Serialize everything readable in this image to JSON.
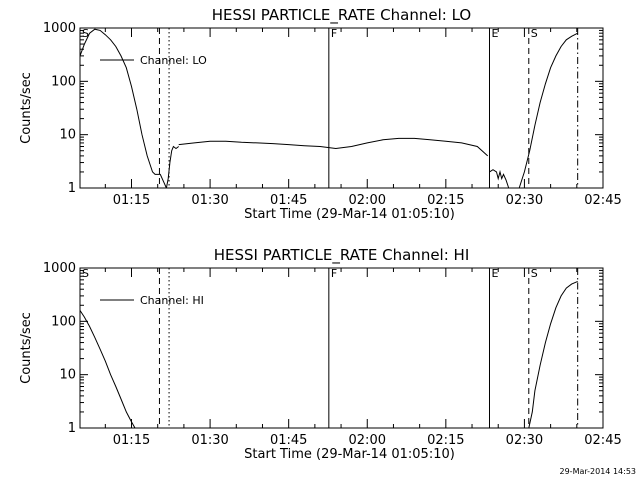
{
  "footer_timestamp": "29-Mar-2014 14:53",
  "chart_data": [
    {
      "type": "line",
      "title": "HESSI PARTICLE_RATE Channel: LO",
      "xlabel": "Start Time (29-Mar-14 01:05:10)",
      "ylabel": "Counts/sec",
      "y_scale": "log",
      "ylim": [
        1,
        1000
      ],
      "xlim": [
        "01:05:10",
        "02:45:00"
      ],
      "y_ticks": [
        "1",
        "10",
        "100",
        "1000"
      ],
      "x_ticks": [
        "01:15",
        "01:30",
        "01:45",
        "02:00",
        "02:15",
        "02:30",
        "02:45"
      ],
      "legend": {
        "entries": [
          "Channel: LO"
        ],
        "placement": "top-left"
      },
      "markers": [
        {
          "label": "S",
          "time": "01:05:10",
          "style": "solid"
        },
        {
          "label": "",
          "time": "01:20:20",
          "style": "dashed"
        },
        {
          "label": "",
          "time": "01:22:10",
          "style": "dotted"
        },
        {
          "label": "F",
          "time": "01:52:40",
          "style": "solid"
        },
        {
          "label": "E",
          "time": "02:23:20",
          "style": "solid"
        },
        {
          "label": "S",
          "time": "02:30:50",
          "style": "dashed"
        },
        {
          "label": "",
          "time": "02:40:10",
          "style": "dashdot"
        }
      ],
      "series": [
        {
          "name": "Channel: LO",
          "segments": [
            {
              "x": [
                "01:05:10",
                "01:06:00",
                "01:07:00",
                "01:08:00",
                "01:09:00",
                "01:10:00",
                "01:11:00",
                "01:12:00",
                "01:13:00",
                "01:14:00",
                "01:15:00",
                "01:16:00",
                "01:17:00",
                "01:18:00",
                "01:19:00",
                "01:19:30",
                "01:20:00",
                "01:20:30",
                "01:21:00",
                "01:21:40"
              ],
              "y": [
                300,
                500,
                800,
                950,
                900,
                750,
                600,
                450,
                300,
                180,
                80,
                30,
                10,
                4,
                2,
                1.8,
                1.8,
                1.8,
                1.4,
                1.0
              ]
            },
            {
              "x": [
                "01:21:40",
                "01:22:00",
                "01:22:20",
                "01:22:40",
                "01:23:00",
                "01:23:30",
                "01:24:00"
              ],
              "y": [
                1.0,
                1.5,
                3,
                5,
                6,
                5.5,
                6
              ]
            },
            {
              "x": [
                "01:24:00",
                "01:27:00",
                "01:30:00",
                "01:33:00",
                "01:36:00",
                "01:39:00",
                "01:42:00",
                "01:45:00",
                "01:48:00",
                "01:51:00",
                "01:54:00",
                "01:57:00",
                "02:00:00",
                "02:03:00",
                "02:06:00",
                "02:09:00",
                "02:12:00",
                "02:15:00",
                "02:18:00",
                "02:21:00",
                "02:23:00"
              ],
              "y": [
                6.5,
                7,
                7.5,
                7.5,
                7.2,
                7,
                6.8,
                6.5,
                6.2,
                6,
                5.5,
                6,
                7,
                8,
                8.5,
                8.5,
                8,
                7.5,
                7,
                6,
                4
              ]
            },
            {
              "x": [
                "02:23:20",
                "02:24:00",
                "02:24:40",
                "02:25:00",
                "02:25:20",
                "02:25:40",
                "02:26:00",
                "02:26:30",
                "02:27:00"
              ],
              "y": [
                2,
                2.2,
                2,
                1.5,
                2,
                1.5,
                1.8,
                1.4,
                1.0
              ]
            },
            {
              "x": [
                "02:29:00",
                "02:30:00",
                "02:31:00",
                "02:32:00",
                "02:33:00",
                "02:34:00",
                "02:35:00",
                "02:36:00",
                "02:37:00",
                "02:38:00",
                "02:39:00",
                "02:40:10"
              ],
              "y": [
                1.0,
                2,
                5,
                15,
                40,
                90,
                180,
                300,
                450,
                600,
                700,
                800
              ]
            }
          ]
        }
      ]
    },
    {
      "type": "line",
      "title": "HESSI PARTICLE_RATE Channel: HI",
      "xlabel": "Start Time (29-Mar-14 01:05:10)",
      "ylabel": "Counts/sec",
      "y_scale": "log",
      "ylim": [
        1,
        1000
      ],
      "xlim": [
        "01:05:10",
        "02:45:00"
      ],
      "y_ticks": [
        "1",
        "10",
        "100",
        "1000"
      ],
      "x_ticks": [
        "01:15",
        "01:30",
        "01:45",
        "02:00",
        "02:15",
        "02:30",
        "02:45"
      ],
      "legend": {
        "entries": [
          "Channel: HI"
        ],
        "placement": "top-left"
      },
      "markers": [
        {
          "label": "S",
          "time": "01:05:10",
          "style": "solid"
        },
        {
          "label": "",
          "time": "01:20:20",
          "style": "dashed"
        },
        {
          "label": "",
          "time": "01:22:10",
          "style": "dotted"
        },
        {
          "label": "F",
          "time": "01:52:40",
          "style": "solid"
        },
        {
          "label": "E",
          "time": "02:23:20",
          "style": "solid"
        },
        {
          "label": "S",
          "time": "02:30:50",
          "style": "dashed"
        },
        {
          "label": "",
          "time": "02:40:10",
          "style": "dashdot"
        }
      ],
      "series": [
        {
          "name": "Channel: HI",
          "segments": [
            {
              "x": [
                "01:05:10",
                "01:06:00",
                "01:07:00",
                "01:08:00",
                "01:09:00",
                "01:10:00",
                "01:11:00",
                "01:12:00",
                "01:13:00",
                "01:14:00",
                "01:15:00",
                "01:15:40"
              ],
              "y": [
                160,
                120,
                80,
                50,
                30,
                18,
                10,
                6,
                3.5,
                2,
                1.3,
                1.0
              ]
            },
            {
              "x": [
                "02:30:50",
                "02:31:30",
                "02:32:00",
                "02:33:00",
                "02:34:00",
                "02:35:00",
                "02:36:00",
                "02:37:00",
                "02:38:00",
                "02:39:00",
                "02:40:10"
              ],
              "y": [
                1.0,
                2,
                5,
                15,
                40,
                90,
                180,
                300,
                420,
                500,
                560
              ]
            }
          ]
        }
      ]
    }
  ]
}
